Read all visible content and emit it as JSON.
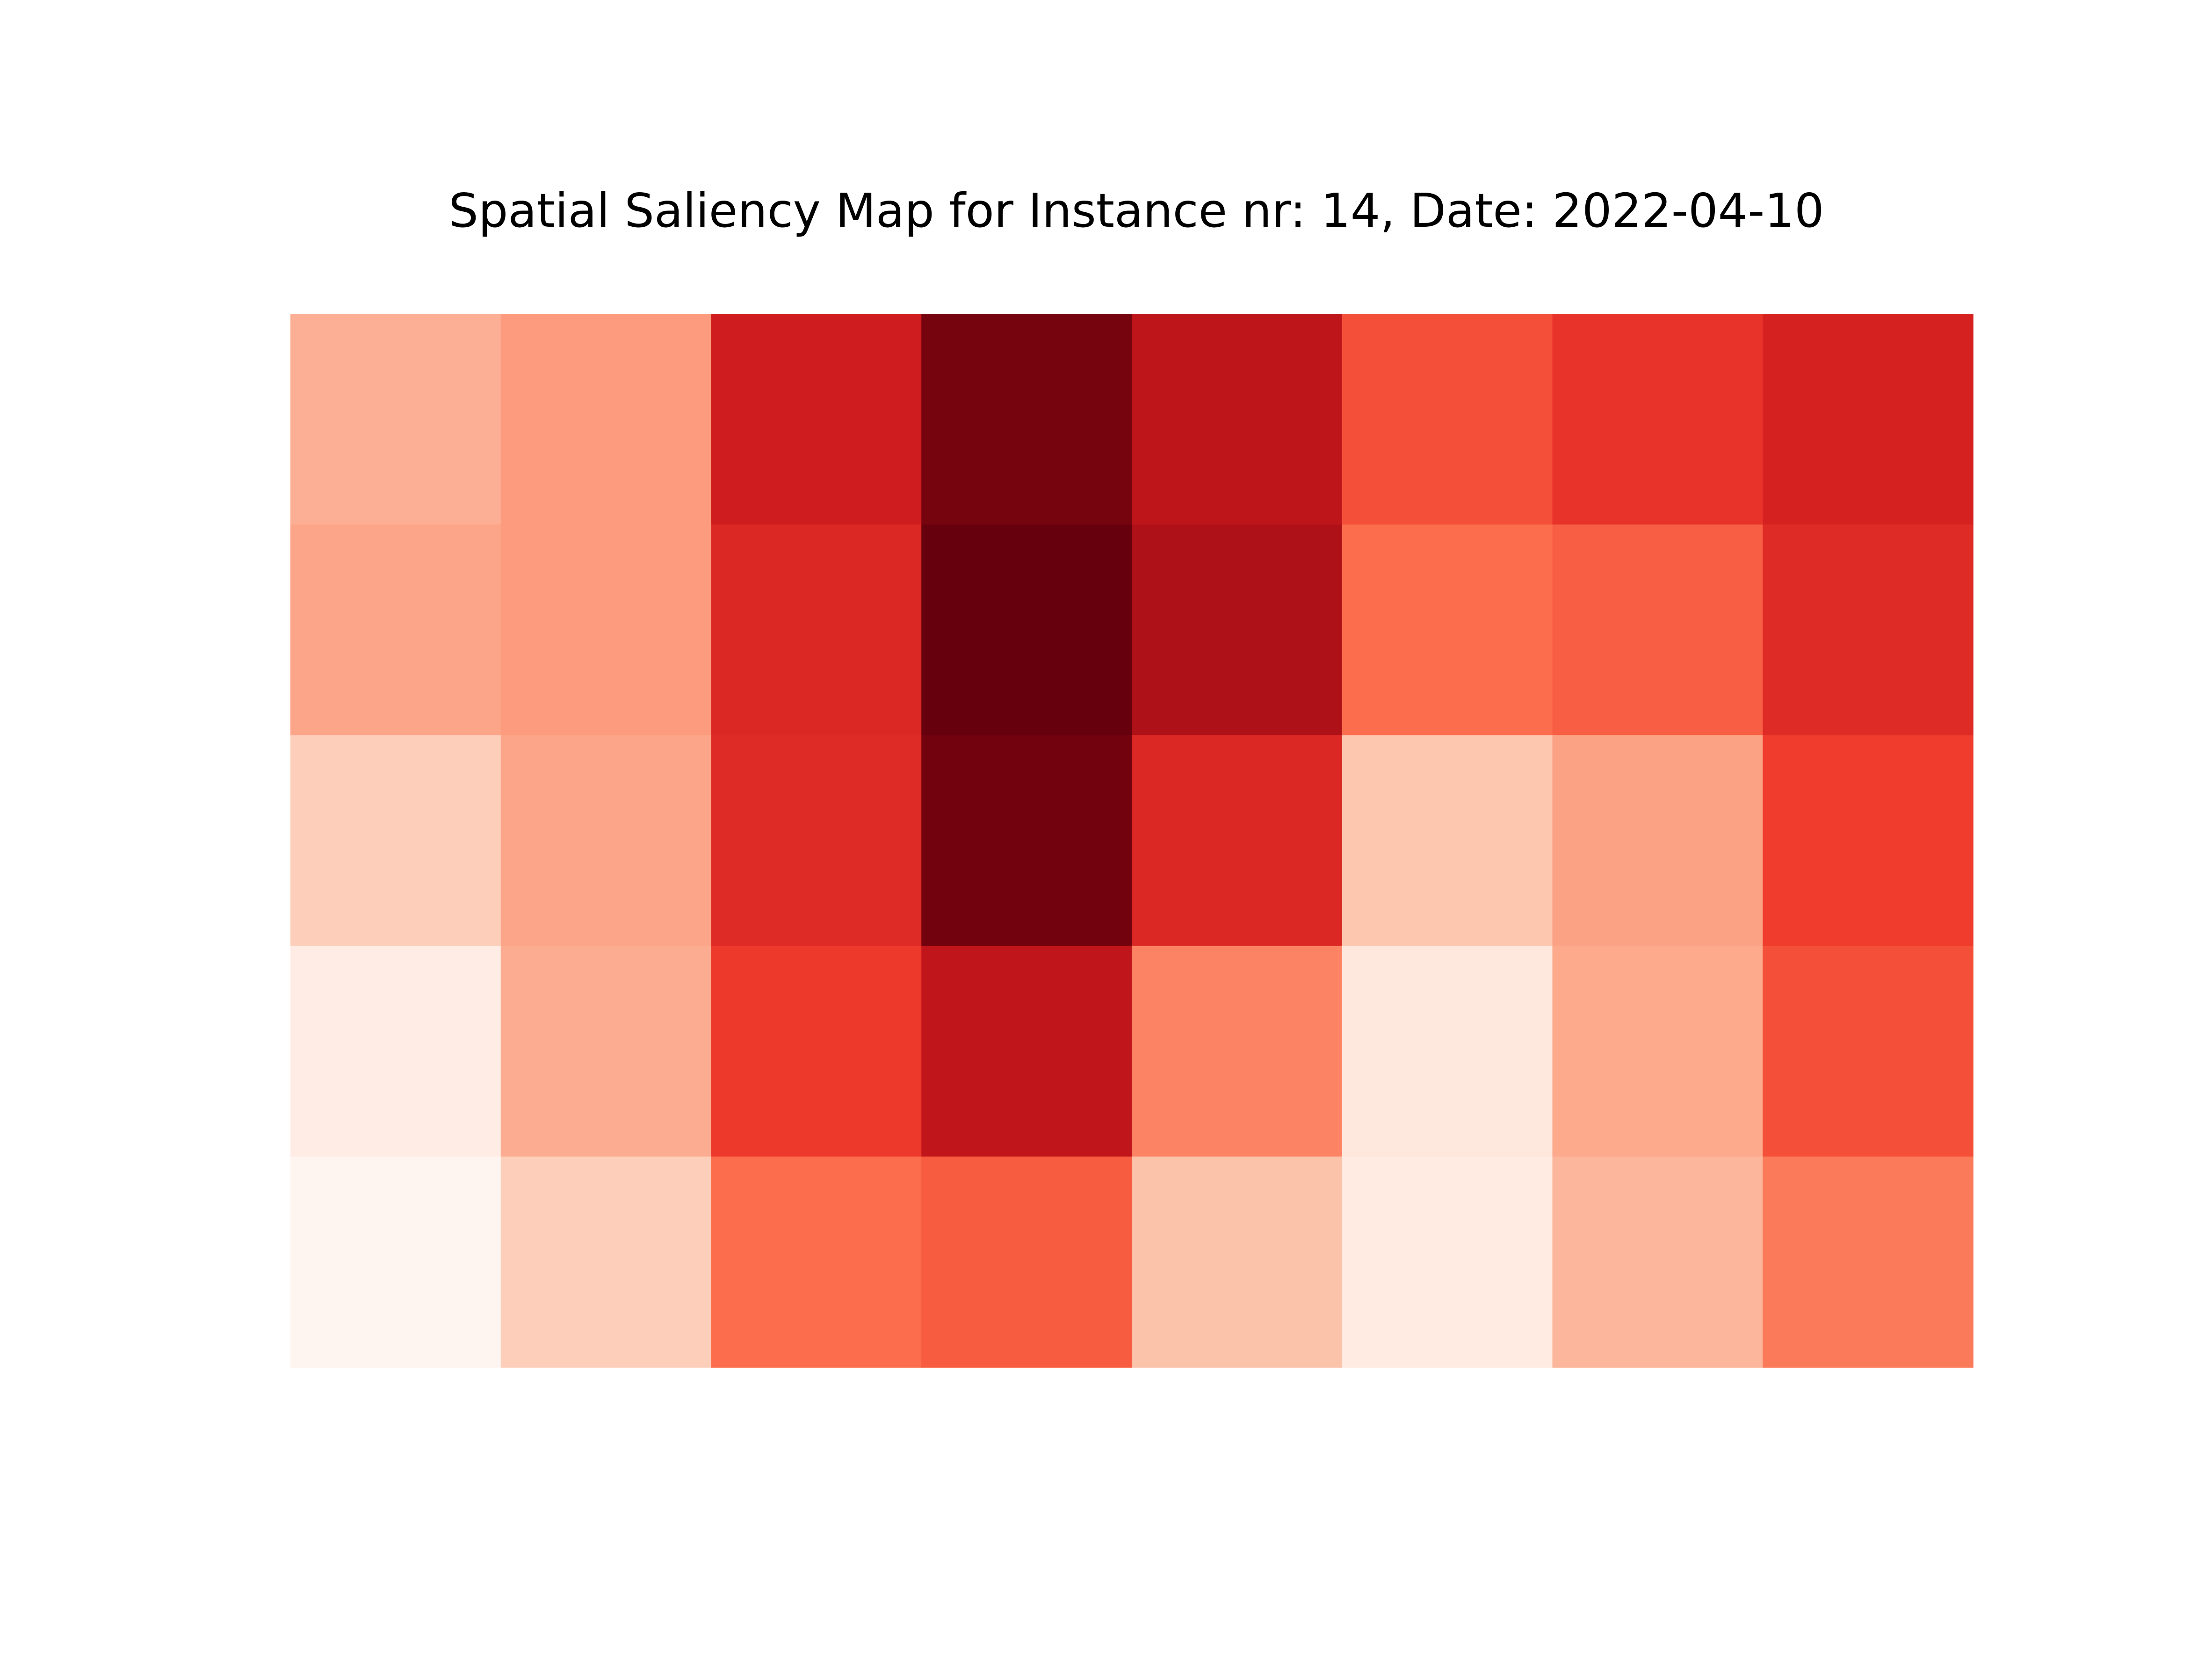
{
  "chart_data": {
    "type": "heatmap",
    "title": "Spatial Saliency Map for Instance nr: 14, Date: 2022-04-10",
    "colormap": "Reds",
    "rows": 5,
    "cols": 8,
    "axes_visible": false,
    "colorbar": false,
    "values": [
      [
        0.3,
        0.36,
        0.74,
        0.97,
        0.8,
        0.58,
        0.66,
        0.72
      ],
      [
        0.33,
        0.36,
        0.7,
        1.0,
        0.85,
        0.5,
        0.54,
        0.69
      ],
      [
        0.2,
        0.33,
        0.69,
        0.98,
        0.7,
        0.23,
        0.34,
        0.63
      ],
      [
        0.07,
        0.31,
        0.64,
        0.79,
        0.43,
        0.1,
        0.32,
        0.58
      ],
      [
        0.02,
        0.2,
        0.5,
        0.55,
        0.24,
        0.08,
        0.28,
        0.46
      ]
    ]
  }
}
